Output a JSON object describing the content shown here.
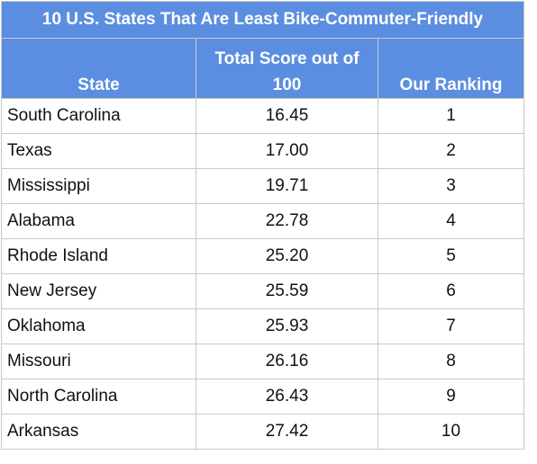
{
  "table": {
    "title": "10 U.S. States That Are Least Bike-Commuter-Friendly",
    "headers": {
      "state": "State",
      "score": "Total Score out of 100",
      "rank": "Our Ranking"
    },
    "rows": [
      {
        "state": "South Carolina",
        "score": "16.45",
        "rank": "1"
      },
      {
        "state": "Texas",
        "score": "17.00",
        "rank": "2"
      },
      {
        "state": "Mississippi",
        "score": "19.71",
        "rank": "3"
      },
      {
        "state": "Alabama",
        "score": "22.78",
        "rank": "4"
      },
      {
        "state": "Rhode Island",
        "score": "25.20",
        "rank": "5"
      },
      {
        "state": "New Jersey",
        "score": "25.59",
        "rank": "6"
      },
      {
        "state": "Oklahoma",
        "score": "25.93",
        "rank": "7"
      },
      {
        "state": "Missouri",
        "score": "26.16",
        "rank": "8"
      },
      {
        "state": "North Carolina",
        "score": "26.43",
        "rank": "9"
      },
      {
        "state": "Arkansas",
        "score": "27.42",
        "rank": "10"
      }
    ]
  },
  "colors": {
    "header_bg": "#5b8ee0",
    "header_text": "#ffffff",
    "grid": "#c9c9c9"
  }
}
